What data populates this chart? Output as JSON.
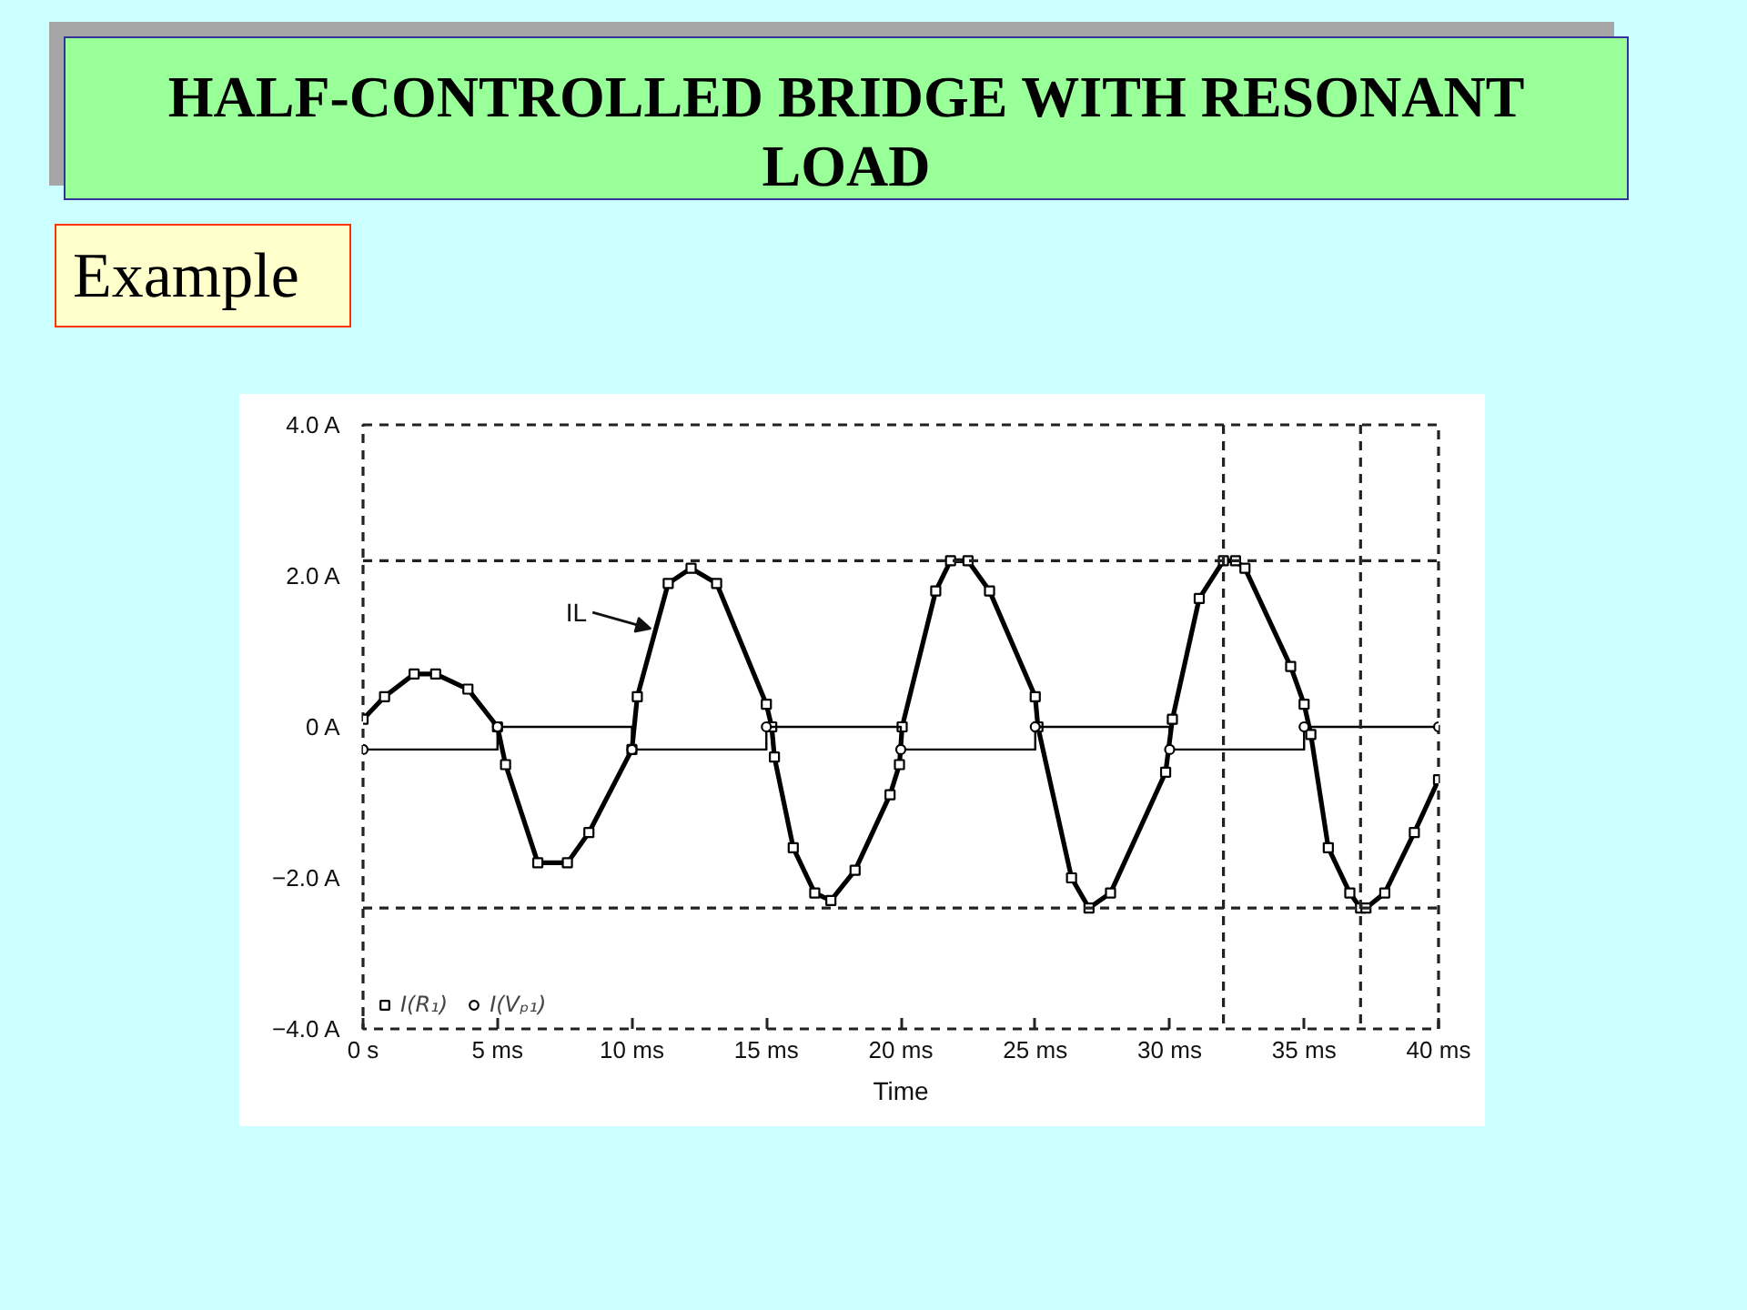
{
  "chart_data": {
    "type": "line",
    "title": "HALF-CONTROLLED BRIDGE WITH RESONANT LOAD",
    "subtitle": "Example",
    "xlabel": "Time",
    "xlim": [
      0,
      40
    ],
    "xticks": [
      {
        "value": 0,
        "label": "0 s"
      },
      {
        "value": 5,
        "label": "5 ms"
      },
      {
        "value": 10,
        "label": "10 ms"
      },
      {
        "value": 15,
        "label": "15 ms"
      },
      {
        "value": 20,
        "label": "20 ms"
      },
      {
        "value": 25,
        "label": "25 ms"
      },
      {
        "value": 30,
        "label": "30 ms"
      },
      {
        "value": 35,
        "label": "35 ms"
      },
      {
        "value": 40,
        "label": "40 ms"
      }
    ],
    "ylim": [
      -4,
      4
    ],
    "yticks": [
      {
        "value": -4,
        "label": "−4.0 A"
      },
      {
        "value": -2,
        "label": "−2.0 A"
      },
      {
        "value": 0,
        "label": "0 A"
      },
      {
        "value": 2,
        "label": "2.0 A"
      },
      {
        "value": 4,
        "label": "4.0 A"
      }
    ],
    "grid": false,
    "legend": "bottom left",
    "series": [
      {
        "name": "I(R₁)",
        "color": "#000000",
        "marker": "square",
        "x": [
          0,
          0.8,
          1.9,
          2.7,
          3.9,
          5.0,
          5.3,
          6.5,
          7.6,
          8.4,
          10.0,
          10.2,
          11.35,
          12.2,
          13.15,
          15.0,
          15.2,
          15.3,
          16.0,
          16.8,
          17.4,
          18.3,
          19.6,
          19.95,
          20.05,
          21.3,
          21.85,
          22.5,
          23.3,
          25.0,
          25.1,
          26.35,
          27.0,
          27.8,
          29.85,
          30.1,
          31.1,
          32.0,
          32.45,
          32.8,
          34.5,
          35.0,
          35.25,
          35.9,
          36.7,
          37.1,
          37.3,
          38.0,
          39.1,
          40.0
        ],
        "values": [
          0.1,
          0.4,
          0.7,
          0.7,
          0.5,
          0.0,
          -0.5,
          -1.8,
          -1.8,
          -1.4,
          -0.3,
          0.4,
          1.9,
          2.1,
          1.9,
          0.3,
          0.0,
          -0.4,
          -1.6,
          -2.2,
          -2.3,
          -1.9,
          -0.9,
          -0.5,
          0.0,
          1.8,
          2.2,
          2.2,
          1.8,
          0.4,
          0.0,
          -2.0,
          -2.4,
          -2.2,
          -0.6,
          0.1,
          1.7,
          2.2,
          2.2,
          2.1,
          0.8,
          0.3,
          -0.1,
          -1.6,
          -2.2,
          -2.4,
          -2.4,
          -2.2,
          -1.4,
          -0.7
        ]
      },
      {
        "name": "I(Vₚ₁)",
        "type": "step",
        "color": "#000000",
        "marker": "circle",
        "x": [
          0,
          5,
          10,
          15,
          20,
          25,
          30,
          35,
          40
        ],
        "values": [
          -0.3,
          0,
          -0.3,
          0,
          -0.3,
          0,
          -0.3,
          0,
          0
        ]
      }
    ],
    "ref_lines": [
      {
        "axis": "y",
        "value": 2.2
      },
      {
        "axis": "y",
        "value": -2.4
      },
      {
        "axis": "x",
        "value": 32.0
      },
      {
        "axis": "x",
        "value": 37.1
      }
    ],
    "annotations": [
      {
        "text": "IL",
        "x": 10.7,
        "y": 1.3
      }
    ]
  }
}
